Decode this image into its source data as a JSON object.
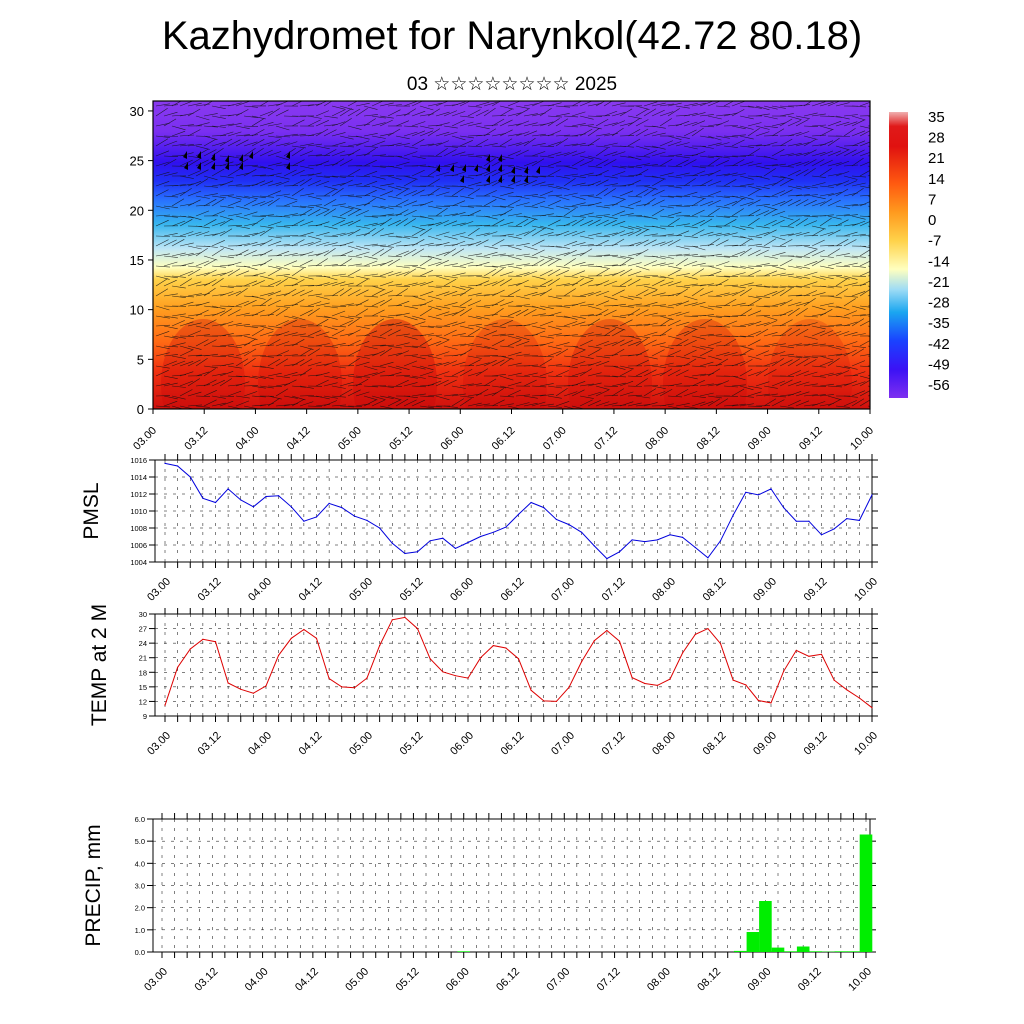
{
  "title": "Kazhydromet for Narynkol(42.72 80.18)",
  "subtitle": "03 ☆☆☆☆☆☆☆☆ 2025",
  "chart_data": [
    {
      "type": "heatmap",
      "id": "cross-section",
      "title": "Kazhydromet for Narynkol(42.72 80.18)",
      "subtitle": "03 ☆☆☆☆☆☆☆☆ 2025",
      "xticks": [
        "03.00",
        "03.12",
        "04.00",
        "04.12",
        "05.00",
        "05.12",
        "06.00",
        "06.12",
        "07.00",
        "07.12",
        "08.00",
        "08.12",
        "09.00",
        "09.12",
        "10.00"
      ],
      "yticks": [
        "0",
        "5",
        "10",
        "15",
        "20",
        "25",
        "30"
      ],
      "ylim": [
        0,
        31
      ],
      "colorbar_labels": [
        "35",
        "28",
        "21",
        "14",
        "7",
        "0",
        "-7",
        "-14",
        "-21",
        "-28",
        "-35",
        "-42",
        "-49",
        "-56"
      ],
      "colorbar_range": [
        -63,
        42
      ],
      "colors": [
        "#7e2ff0",
        "#3b12f5",
        "#1a42ff",
        "#1aa6f0",
        "#9fdcf5",
        "#ffffbf",
        "#ffd24a",
        "#ff9a1e",
        "#ff5a10",
        "#e01210",
        "#f0a0a0"
      ],
      "wind_barbs": true
    },
    {
      "type": "line",
      "id": "pmsl",
      "ylabel": "PMSL",
      "yticks": [
        "1004",
        "1006",
        "1008",
        "1010",
        "1012",
        "1014",
        "1016"
      ],
      "ylim": [
        1004,
        1016
      ],
      "xticks": [
        "03.00",
        "03.12",
        "04.00",
        "04.12",
        "05.00",
        "05.12",
        "06.00",
        "06.12",
        "07.00",
        "07.12",
        "08.00",
        "08.12",
        "09.00",
        "09.12",
        "10.00"
      ],
      "color": "#0000dd",
      "x": [
        0,
        1,
        2,
        3,
        4,
        5,
        6,
        7,
        8,
        9,
        10,
        11,
        12,
        13,
        14,
        15,
        16,
        17,
        18,
        19,
        20,
        21,
        22,
        23,
        24,
        25,
        26,
        27,
        28,
        29,
        30,
        31,
        32,
        33,
        34,
        35,
        36,
        37,
        38,
        39,
        40,
        41,
        42,
        43,
        44,
        45,
        46,
        47,
        48,
        49,
        50,
        51,
        52,
        53,
        54,
        55,
        56
      ],
      "values": [
        1015.6,
        1015.3,
        1014.0,
        1011.5,
        1011.0,
        1012.6,
        1011.3,
        1010.5,
        1011.7,
        1011.8,
        1010.5,
        1008.8,
        1009.3,
        1010.9,
        1010.4,
        1009.4,
        1008.9,
        1008.0,
        1006.2,
        1005.0,
        1005.2,
        1006.5,
        1006.8,
        1005.6,
        1006.3,
        1007.0,
        1007.5,
        1008.1,
        1009.6,
        1011.0,
        1010.4,
        1009.0,
        1008.4,
        1007.5,
        1005.9,
        1004.4,
        1005.2,
        1006.6,
        1006.4,
        1006.6,
        1007.2,
        1006.9,
        1005.7,
        1004.5,
        1006.5,
        1009.5,
        1012.2,
        1011.9,
        1012.6,
        1010.4,
        1008.8,
        1008.8,
        1007.2,
        1007.9,
        1009.1,
        1008.9,
        1011.9
      ]
    },
    {
      "type": "line",
      "id": "temp2m",
      "ylabel": "TEMP at 2 M",
      "yticks": [
        "9",
        "12",
        "15",
        "18",
        "21",
        "24",
        "27",
        "30"
      ],
      "ylim": [
        9,
        30
      ],
      "xticks": [
        "03.00",
        "03.12",
        "04.00",
        "04.12",
        "05.00",
        "05.12",
        "06.00",
        "06.12",
        "07.00",
        "07.12",
        "08.00",
        "08.12",
        "09.00",
        "09.12",
        "10.00"
      ],
      "color": "#dd0000",
      "x": [
        0,
        1,
        2,
        3,
        4,
        5,
        6,
        7,
        8,
        9,
        10,
        11,
        12,
        13,
        14,
        15,
        16,
        17,
        18,
        19,
        20,
        21,
        22,
        23,
        24,
        25,
        26,
        27,
        28,
        29,
        30,
        31,
        32,
        33,
        34,
        35,
        36,
        37,
        38,
        39,
        40,
        41,
        42,
        43,
        44,
        45,
        46,
        47,
        48,
        49,
        50,
        51,
        52,
        53,
        54,
        55,
        56
      ],
      "values": [
        11.2,
        19.0,
        22.8,
        24.8,
        24.3,
        15.8,
        14.5,
        13.7,
        15.2,
        21.5,
        25.0,
        26.8,
        25.0,
        16.7,
        15.0,
        14.8,
        16.8,
        23.5,
        28.8,
        29.3,
        27.0,
        20.8,
        18.1,
        17.3,
        16.8,
        21.0,
        23.5,
        23.0,
        20.8,
        14.3,
        12.1,
        12.0,
        14.9,
        20.2,
        24.5,
        26.6,
        24.4,
        16.9,
        15.7,
        15.3,
        16.6,
        22.0,
        25.8,
        27.0,
        23.9,
        16.4,
        15.4,
        12.2,
        11.7,
        18.2,
        22.5,
        21.3,
        21.7,
        16.4,
        14.4,
        12.7,
        10.7
      ]
    },
    {
      "type": "bar",
      "id": "precip",
      "ylabel": "PRECIP, mm",
      "yticks": [
        "0.0",
        "1.0",
        "2.0",
        "3.0",
        "4.0",
        "5.0",
        "6.0"
      ],
      "ylim": [
        0,
        6
      ],
      "xticks": [
        "03.00",
        "03.12",
        "04.00",
        "04.12",
        "05.00",
        "05.12",
        "06.00",
        "06.12",
        "07.00",
        "07.12",
        "08.00",
        "08.12",
        "09.00",
        "09.12",
        "10.00"
      ],
      "color": "#00ee00",
      "x": [
        24,
        46,
        47,
        48,
        49,
        50,
        51,
        52,
        53,
        54,
        55,
        56
      ],
      "values": [
        0.03,
        0.05,
        0.9,
        2.3,
        0.2,
        0.03,
        0.25,
        0.03,
        0.02,
        0.03,
        0.03,
        5.3
      ]
    }
  ]
}
